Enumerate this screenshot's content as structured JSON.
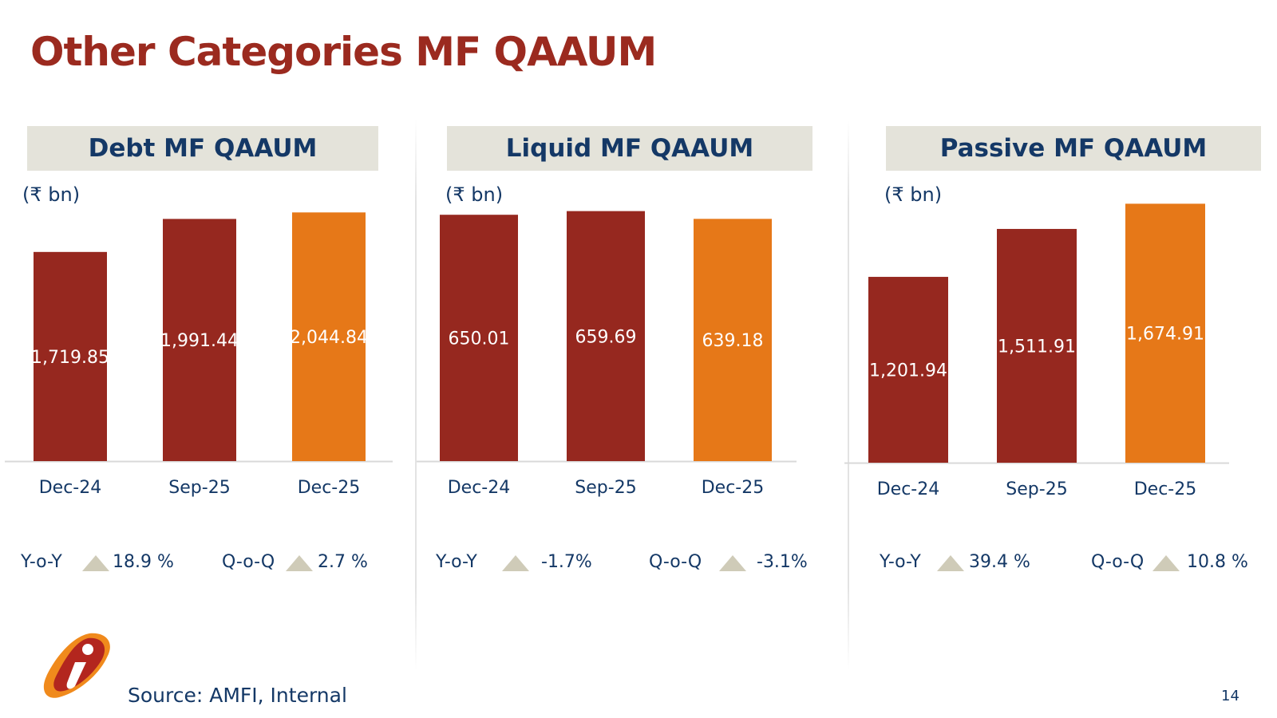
{
  "title": "Other Categories MF QAAUM",
  "colors": {
    "title": "#9b2a1f",
    "bar_primary": "#96281f",
    "bar_highlight": "#e67818",
    "text_dark": "#143866",
    "header_bg": "#e4e3da",
    "triangle": "#cfcbb8"
  },
  "chart_data": [
    {
      "type": "bar",
      "title": "Debt MF QAAUM",
      "ylabel": "(₹ bn)",
      "categories": [
        "Dec-24",
        "Sep-25",
        "Dec-25"
      ],
      "values": [
        1719.85,
        1991.44,
        2044.84
      ],
      "value_labels": [
        "1,719.85",
        "1,991.44",
        "2,044.84"
      ],
      "ylim": [
        0,
        2250
      ],
      "growth": {
        "yoy_label": "Y-o-Y",
        "yoy": "18.9 %",
        "qoq_label": "Q-o-Q",
        "qoq": "2.7 %"
      }
    },
    {
      "type": "bar",
      "title": "Liquid MF QAAUM",
      "ylabel": "(₹ bn)",
      "categories": [
        "Dec-24",
        "Sep-25",
        "Dec-25"
      ],
      "values": [
        650.01,
        659.69,
        639.18
      ],
      "value_labels": [
        "650.01",
        "659.69",
        "639.18"
      ],
      "ylim": [
        0,
        722
      ],
      "growth": {
        "yoy_label": "Y-o-Y",
        "yoy": "-1.7%",
        "qoq_label": "Q-o-Q",
        "qoq": "-3.1%"
      }
    },
    {
      "type": "bar",
      "title": "Passive MF QAAUM",
      "ylabel": "(₹ bn)",
      "categories": [
        "Dec-24",
        "Sep-25",
        "Dec-25"
      ],
      "values": [
        1201.94,
        1511.91,
        1674.91
      ],
      "value_labels": [
        "1,201.94",
        "1,511.91",
        "1,674.91"
      ],
      "ylim": [
        0,
        1780
      ],
      "growth": {
        "yoy_label": "Y-o-Y",
        "yoy": "39.4 %",
        "qoq_label": "Q-o-Q",
        "qoq": "10.8 %"
      }
    }
  ],
  "footer": {
    "source": "Source: AMFI, Internal",
    "page_number": "14",
    "logo_icon": "icici-i-logo-icon"
  }
}
